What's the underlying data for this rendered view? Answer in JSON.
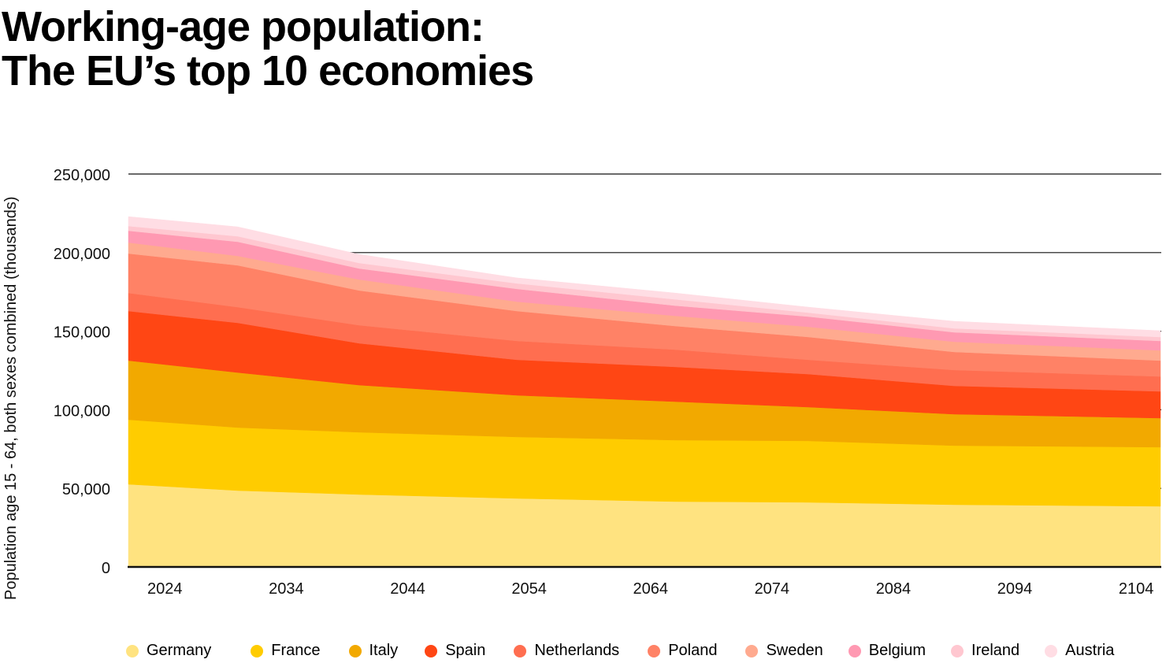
{
  "title": {
    "line1": "Working-age population:",
    "line2": "The EU’s top 10 economies"
  },
  "chart_data": {
    "type": "area",
    "stacked": true,
    "ylabel": "Population age 15 - 64, both sexes combined (thousands)",
    "xlabel": "",
    "ylim": [
      0,
      250000
    ],
    "xlim": [
      2021,
      2106
    ],
    "yticks": [
      0,
      50000,
      100000,
      150000,
      200000,
      250000
    ],
    "ytick_labels": [
      "0",
      "50,000",
      "100,000",
      "150,000",
      "200,000",
      "250,000"
    ],
    "xticks": [
      2024,
      2034,
      2044,
      2054,
      2064,
      2074,
      2084,
      2094,
      2104
    ],
    "xtick_labels": [
      "2024",
      "2034",
      "2044",
      "2054",
      "2064",
      "2074",
      "2084",
      "2094",
      "2104"
    ],
    "grid": "horizontal",
    "legend_position": "bottom",
    "x": [
      2021,
      2030,
      2040,
      2053,
      2066,
      2077,
      2089,
      2106
    ],
    "series": [
      {
        "name": "Germany",
        "color": "#FFE380",
        "values": [
          52600,
          48600,
          46100,
          43600,
          41600,
          41100,
          39600,
          38600
        ]
      },
      {
        "name": "France",
        "color": "#FFCC00",
        "values": [
          41100,
          40100,
          39600,
          39100,
          39100,
          39100,
          37600,
          37600
        ]
      },
      {
        "name": "Italy",
        "color": "#F2A900",
        "values": [
          37600,
          35000,
          30000,
          26500,
          24500,
          21500,
          20000,
          18500
        ]
      },
      {
        "name": "Spain",
        "color": "#FF4614",
        "values": [
          31500,
          31600,
          26600,
          22600,
          22100,
          21000,
          18000,
          17000
        ]
      },
      {
        "name": "Netherlands",
        "color": "#FF6E50",
        "values": [
          11500,
          10000,
          11500,
          12000,
          11000,
          9100,
          10100,
          9500
        ]
      },
      {
        "name": "Poland",
        "color": "#FF8266",
        "values": [
          25100,
          26600,
          22100,
          19000,
          15000,
          14500,
          11500,
          10100
        ]
      },
      {
        "name": "Sweden",
        "color": "#FFAA8F",
        "values": [
          7000,
          6000,
          7000,
          6000,
          6500,
          6500,
          6500,
          6500
        ]
      },
      {
        "name": "Belgium",
        "color": "#FF99B2",
        "values": [
          7500,
          9000,
          7000,
          8100,
          6500,
          6500,
          6000,
          6000
        ]
      },
      {
        "name": "Ireland",
        "color": "#FFC7D0",
        "values": [
          3000,
          3500,
          3500,
          3500,
          4000,
          2500,
          2500,
          2500
        ]
      },
      {
        "name": "Austria",
        "color": "#FFDDE4",
        "values": [
          6000,
          6000,
          5500,
          3500,
          4000,
          3500,
          4500,
          4000
        ]
      }
    ]
  }
}
